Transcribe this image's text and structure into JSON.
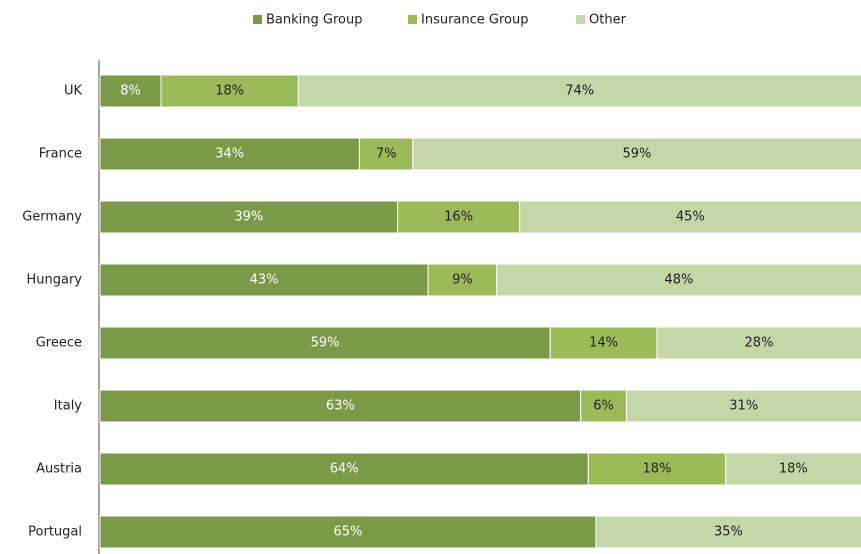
{
  "chart_data": {
    "type": "bar",
    "orientation": "horizontal",
    "stacked": true,
    "categories": [
      "UK",
      "France",
      "Germany",
      "Hungary",
      "Greece",
      "Italy",
      "Austria",
      "Portugal"
    ],
    "series": [
      {
        "name": "Banking Group",
        "color": "#7b9a48",
        "label_color": "#ffffff",
        "values": [
          8,
          34,
          39,
          43,
          59,
          63,
          64,
          65
        ],
        "value_labels": [
          "8%",
          "34%",
          "39%",
          "43%",
          "59%",
          "63%",
          "64%",
          "65%"
        ]
      },
      {
        "name": "Insurance Group",
        "color": "#9bbb59",
        "label_color": "#222222",
        "values": [
          18,
          7,
          16,
          9,
          14,
          6,
          18,
          null
        ],
        "value_labels": [
          "18%",
          "7%",
          "16%",
          "9%",
          "14%",
          "6%",
          "18%",
          null
        ]
      },
      {
        "name": "Other",
        "color": "#c4d7a9",
        "label_color": "#222222",
        "values": [
          74,
          59,
          45,
          48,
          28,
          31,
          18,
          35
        ],
        "value_labels": [
          "74%",
          "59%",
          "45%",
          "48%",
          "28%",
          "31%",
          "18%",
          "35%"
        ]
      }
    ],
    "xlim": [
      0,
      100
    ],
    "legend": "top"
  }
}
